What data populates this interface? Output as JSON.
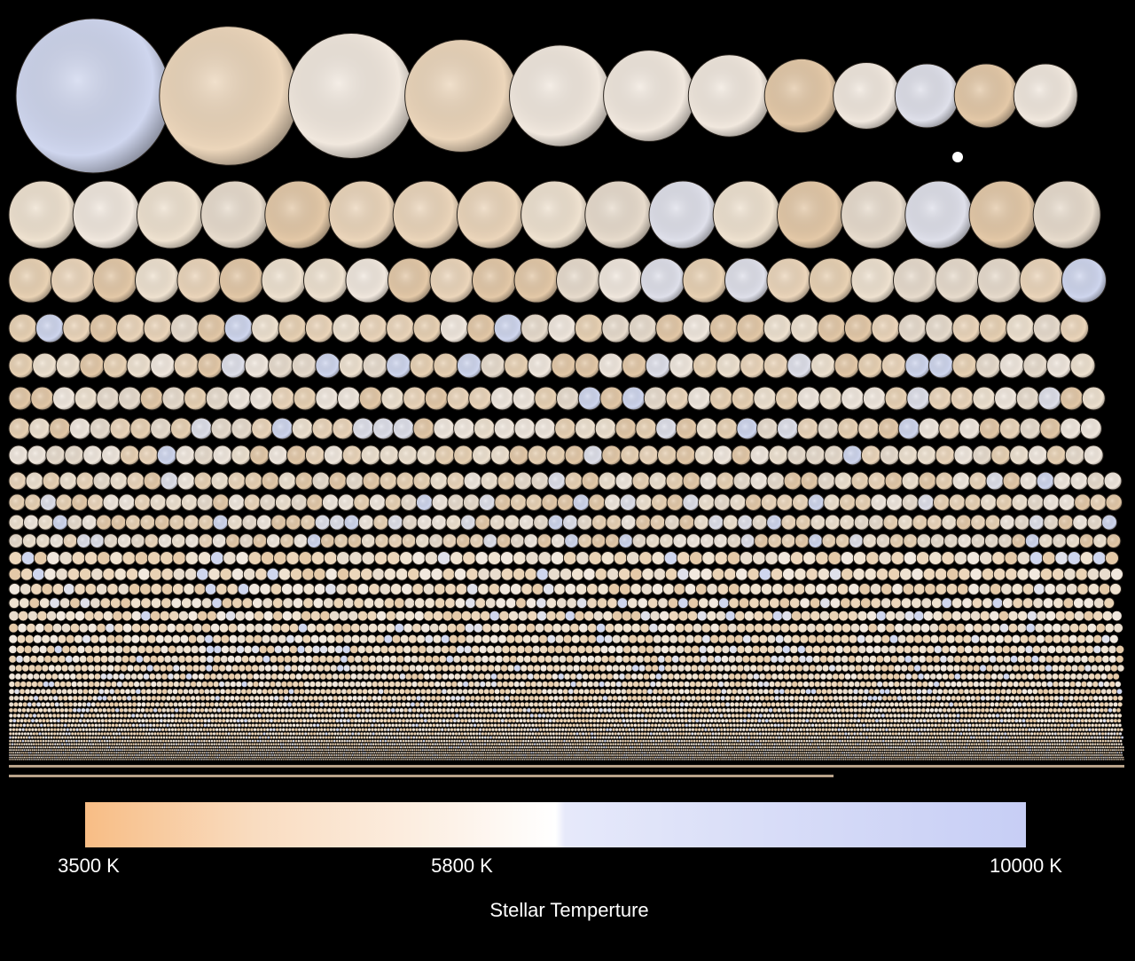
{
  "colorbar": {
    "labels": [
      "3500 K",
      "5800 K",
      "10000 K"
    ],
    "title": "Stellar Temperture"
  }
}
